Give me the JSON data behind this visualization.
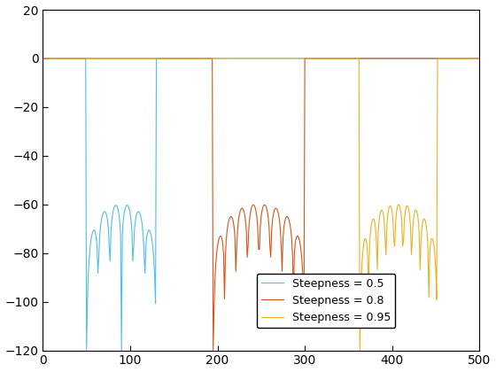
{
  "title": "",
  "xlim": [
    0,
    500
  ],
  "ylim": [
    -120,
    20
  ],
  "yticks": [
    -120,
    -100,
    -80,
    -60,
    -40,
    -20,
    0,
    20
  ],
  "xticks": [
    0,
    100,
    200,
    300,
    400,
    500
  ],
  "colors": {
    "steepness_05": "#4DBEEE",
    "steepness_08": "#D95319",
    "steepness_095": "#EDB120"
  },
  "legend_labels": [
    "Steepness = 0.5",
    "Steepness = 0.8",
    "Steepness = 0.95"
  ],
  "background_color": "#ffffff",
  "linewidth": 0.8,
  "segments": [
    {
      "steepness": 0.5,
      "x_start": 50,
      "x_end": 130,
      "color_key": "steepness_05"
    },
    {
      "steepness": 0.8,
      "x_start": 195,
      "x_end": 300,
      "color_key": "steepness_08"
    },
    {
      "steepness": 0.95,
      "x_start": 363,
      "x_end": 452,
      "color_key": "steepness_095"
    }
  ],
  "n_samples": 500,
  "db_plateau": -60,
  "db_floor": -120,
  "n_oscillations": [
    6,
    7,
    7
  ],
  "spike_depths": [
    -93,
    -100,
    -105
  ]
}
